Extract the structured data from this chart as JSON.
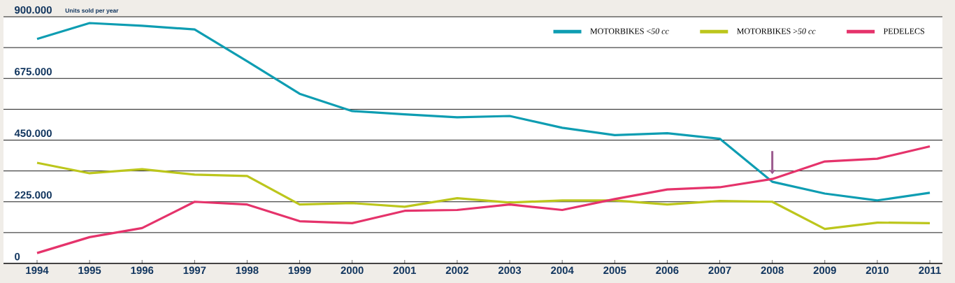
{
  "chart_data": {
    "type": "line",
    "ylabel": "Units sold per year",
    "categories": [
      "1994",
      "1995",
      "1996",
      "1997",
      "1998",
      "1999",
      "2000",
      "2001",
      "2002",
      "2003",
      "2004",
      "2005",
      "2006",
      "2007",
      "2008",
      "2009",
      "2010",
      "2011"
    ],
    "series": [
      {
        "name": "MOTORBIKES <*50 cc*",
        "color": "#0e9db2",
        "values": [
          819000,
          877000,
          867000,
          854000,
          738000,
          619000,
          556000,
          544000,
          533000,
          538000,
          495000,
          468000,
          475000,
          455000,
          298000,
          255000,
          230000,
          258000
        ]
      },
      {
        "name": "MOTORBIKES >*50 cc*",
        "color": "#bcc61c",
        "values": [
          367000,
          329000,
          344000,
          324000,
          319000,
          215000,
          220000,
          207000,
          238000,
          222000,
          230000,
          230000,
          215000,
          228000,
          225000,
          126000,
          149000,
          147000
        ]
      },
      {
        "name": "PEDELECS",
        "color": "#e5336b",
        "values": [
          38000,
          96000,
          129000,
          225000,
          215000,
          154000,
          147000,
          192000,
          195000,
          215000,
          195000,
          235000,
          270000,
          278000,
          308000,
          372000,
          382000,
          427000
        ]
      }
    ],
    "ylim": [
      0,
      900000
    ],
    "yticks": [
      {
        "value": 0,
        "label": "0"
      },
      {
        "value": 112500,
        "label": null
      },
      {
        "value": 225000,
        "label": "225.000"
      },
      {
        "value": 337500,
        "label": null
      },
      {
        "value": 450000,
        "label": "450.000"
      },
      {
        "value": 562500,
        "label": null
      },
      {
        "value": 675000,
        "label": "675.000"
      },
      {
        "value": 787500,
        "label": null
      },
      {
        "value": 900000,
        "label": "900.000"
      }
    ],
    "grid": "y",
    "legend": "top right",
    "marker": "none",
    "line_style": "solid"
  }
}
